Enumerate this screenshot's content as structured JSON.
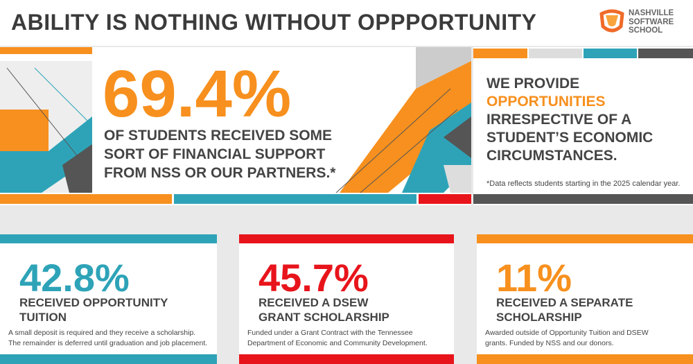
{
  "header": {
    "title": "ABILITY IS NOTHING WITHOUT OPPPORTUNITY",
    "logo_lines": [
      "NASHVILLE",
      "SOFTWARE",
      "SCHOOL"
    ]
  },
  "banner": {
    "stat": "69.4%",
    "description_lines": [
      "OF STUDENTS RECEIVED SOME",
      "SORT OF FINANCIAL SUPPORT",
      "FROM NSS OR OUR PARTNERS.*"
    ],
    "tagline_lines": [
      "WE PROVIDE",
      "OPPORTUNITIES",
      "IRRESPECTIVE OF A",
      "STUDENT’S ECONOMIC",
      "CIRCUMSTANCES."
    ],
    "footnote": "*Data reflects students starting in the 2025 calendar year."
  },
  "cards": [
    {
      "stat": "42.8%",
      "heading_lines": [
        "RECEIVED OPPORTUNITY",
        "TUITION"
      ],
      "note_lines": [
        "A small deposit is required and they receive a scholarship.",
        "The remainder is deferred until graduation and job placement."
      ]
    },
    {
      "stat": "45.7%",
      "heading_lines": [
        "RECEIVED A DSEW",
        "GRANT SCHOLARSHIP"
      ],
      "note_lines": [
        "Funded under a Grant Contract with the Tennessee",
        "Department of Economic and Community Development."
      ]
    },
    {
      "stat": "11%",
      "heading_lines": [
        "RECEIVED A SEPARATE",
        "SCHOLARSHIP"
      ],
      "note_lines": [
        "Awarded outside of Opportunity Tuition and DSEW",
        "grants. Funded by NSS and our donors."
      ]
    }
  ]
}
